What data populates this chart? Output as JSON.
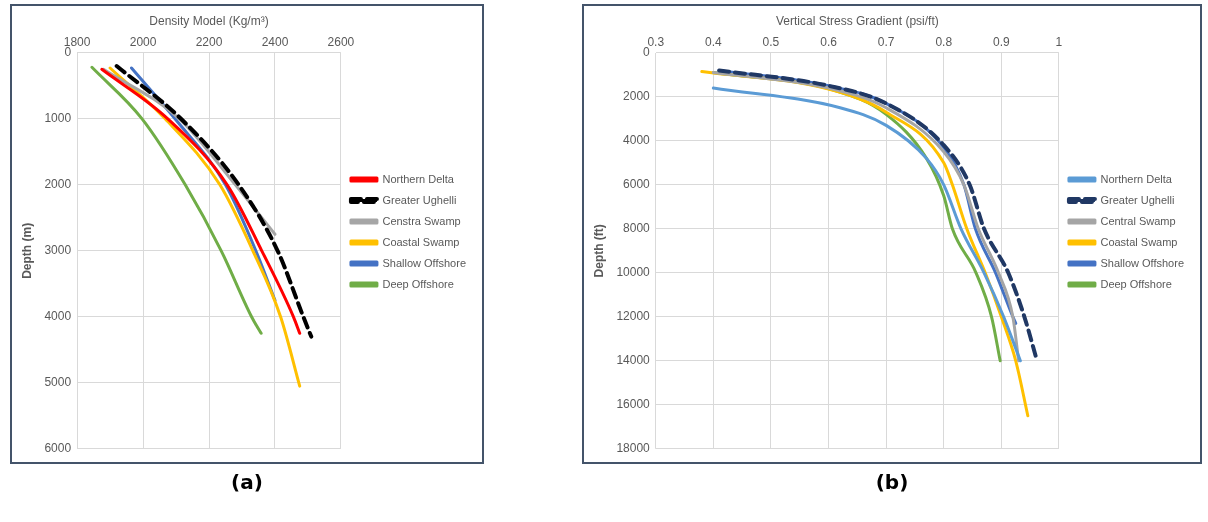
{
  "chart_data": [
    {
      "type": "line",
      "xlabel": "Density Model (Kg/m³)",
      "ylabel": "Depth (m)",
      "xlim": [
        1800,
        2600
      ],
      "xticks": [
        1800,
        2000,
        2200,
        2400,
        2600
      ],
      "ylim": [
        6000,
        0
      ],
      "yticks": [
        0,
        1000,
        2000,
        3000,
        4000,
        5000,
        6000
      ],
      "grid": true,
      "legend": "right",
      "annotations": [
        "(a)"
      ],
      "series": [
        {
          "name": "Northern Delta",
          "color": "#ff0000",
          "x": [
            1875,
            2075,
            2255,
            2360,
            2456,
            2475
          ],
          "values": [
            250,
            1000,
            2000,
            3000,
            4000,
            4250
          ]
        },
        {
          "name": "Greater Ughelli",
          "color": "#000000",
          "line_style": "dashed",
          "x": [
            1920,
            2115,
            2290,
            2408,
            2486,
            2510
          ],
          "values": [
            200,
            1000,
            2000,
            3000,
            4000,
            4300
          ]
        },
        {
          "name": "Censtra Swamp",
          "color": "#a6a6a6",
          "x": [
            1880,
            2110,
            2280,
            2400
          ],
          "values": [
            250,
            1000,
            2000,
            2750
          ]
        },
        {
          "name": "Coastal Swamp",
          "color": "#ffc000",
          "x": [
            1900,
            2067,
            2233,
            2333,
            2417,
            2475
          ],
          "values": [
            230,
            1000,
            2000,
            3000,
            4000,
            5050
          ]
        },
        {
          "name": "Shallow Offshore",
          "color": "#4472c4",
          "x": [
            1965,
            2097,
            2250,
            2342,
            2400
          ],
          "values": [
            230,
            1000,
            2000,
            3000,
            3750
          ]
        },
        {
          "name": "Deep Offshore",
          "color": "#70ad47",
          "x": [
            1845,
            1997,
            2128,
            2237,
            2329,
            2358
          ],
          "values": [
            220,
            1000,
            2000,
            3000,
            4000,
            4250
          ]
        }
      ]
    },
    {
      "type": "line",
      "xlabel": "Vertical Stress Gradient (psi/ft)",
      "ylabel": "Depth (ft)",
      "xlim": [
        0.3,
        1
      ],
      "xticks": [
        0.3,
        0.4,
        0.5,
        0.6,
        0.7,
        0.8,
        0.9,
        1
      ],
      "ylim": [
        18000,
        0
      ],
      "yticks": [
        0,
        2000,
        4000,
        6000,
        8000,
        10000,
        12000,
        14000,
        16000,
        18000
      ],
      "grid": true,
      "legend": "right",
      "annotations": [
        "(b)"
      ],
      "series": [
        {
          "name": "Northern Delta",
          "color": "#5b9bd5",
          "x": [
            0.4,
            0.62,
            0.7,
            0.77,
            0.8,
            0.83,
            0.87,
            0.904,
            0.933
          ],
          "values": [
            1600,
            2500,
            3300,
            4800,
            6000,
            8000,
            10000,
            12000,
            14000
          ]
        },
        {
          "name": "Greater Ughelli",
          "color": "#203864",
          "line_style": "dashed",
          "x": [
            0.41,
            0.6,
            0.7,
            0.8,
            0.845,
            0.87,
            0.912,
            0.94,
            0.962
          ],
          "values": [
            800,
            1500,
            2300,
            4200,
            6000,
            8000,
            10000,
            12000,
            14000
          ]
        },
        {
          "name": "Central Swamp",
          "color": "#a5a5a5",
          "x": [
            0.4,
            0.6,
            0.7,
            0.8,
            0.835,
            0.86,
            0.895,
            0.92,
            0.93
          ],
          "values": [
            900,
            1600,
            2500,
            4500,
            6000,
            8000,
            10000,
            12000,
            14000
          ]
        },
        {
          "name": "Coastal Swamp",
          "color": "#ffc000",
          "x": [
            0.38,
            0.6,
            0.7,
            0.8,
            0.815,
            0.84,
            0.872,
            0.9,
            0.925,
            0.946
          ],
          "values": [
            850,
            1650,
            2700,
            5000,
            6000,
            8000,
            10000,
            12000,
            14000,
            16500
          ]
        },
        {
          "name": "Shallow Offshore",
          "color": "#4472c4",
          "x": [
            0.41,
            0.6,
            0.7,
            0.8,
            0.835,
            0.855,
            0.89,
            0.92,
            0.925
          ],
          "values": [
            800,
            1500,
            2300,
            4300,
            6000,
            8000,
            10000,
            12000,
            12300
          ]
        },
        {
          "name": "Deep Offshore",
          "color": "#70ad47",
          "x": [
            0.4,
            0.61,
            0.7,
            0.77,
            0.8,
            0.815,
            0.856,
            0.883,
            0.898
          ],
          "values": [
            900,
            1700,
            2800,
            4800,
            6500,
            8000,
            10000,
            12000,
            14000
          ]
        }
      ]
    }
  ]
}
